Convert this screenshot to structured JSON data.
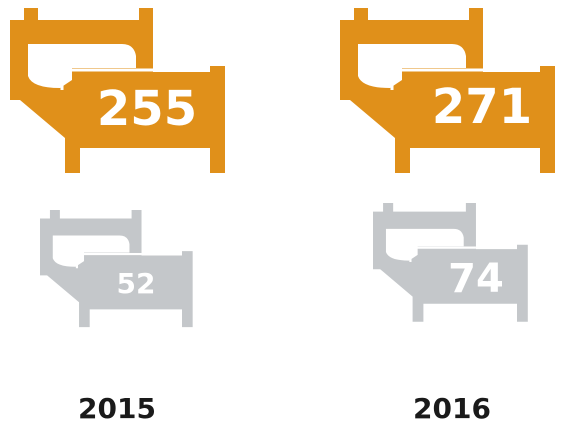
{
  "columns": [
    {
      "year": "2015",
      "top": 255,
      "bottom": 52
    },
    {
      "year": "2016",
      "top": 271,
      "bottom": 74
    }
  ]
}
